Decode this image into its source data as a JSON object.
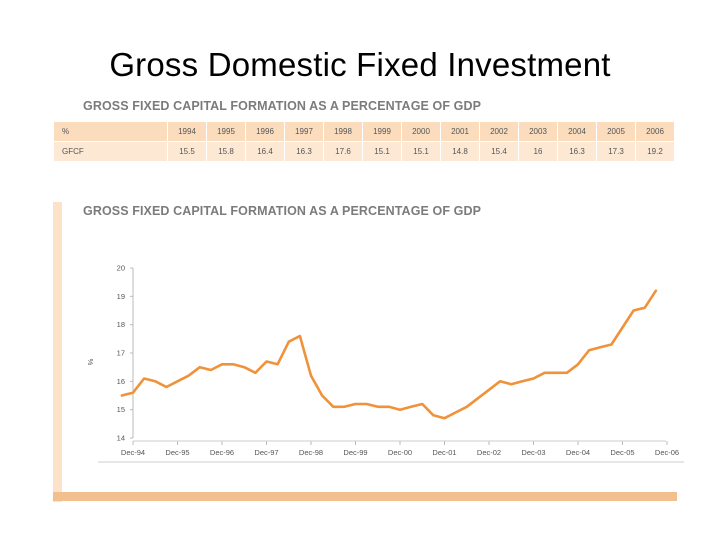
{
  "slide_title": "Gross Domestic Fixed Investment",
  "table": {
    "heading": "GROSS FIXED CAPITAL FORMATION AS A PERCENTAGE OF GDP",
    "header_label": "%",
    "years": [
      "1994",
      "1995",
      "1996",
      "1997",
      "1998",
      "1999",
      "2000",
      "2001",
      "2002",
      "2003",
      "2004",
      "2005",
      "2006"
    ],
    "row_label": "GFCF",
    "values": [
      "15.5",
      "15.8",
      "16.4",
      "16.3",
      "17.6",
      "15.1",
      "15.1",
      "14.8",
      "15.4",
      "16",
      "16.3",
      "17.3",
      "19.2"
    ]
  },
  "chart_data": {
    "type": "line",
    "title": "GROSS FIXED CAPITAL FORMATION AS A PERCENTAGE OF GDP",
    "xlabel": "",
    "ylabel": "%",
    "ylim": [
      14,
      20
    ],
    "y_ticks": [
      "20",
      "19",
      "18",
      "17",
      "16",
      "15",
      "14"
    ],
    "x_ticks": [
      "Dec-94",
      "Dec-95",
      "Dec-96",
      "Dec-97",
      "Dec-98",
      "Dec-99",
      "Dec-00",
      "Dec-01",
      "Dec-02",
      "Dec-03",
      "Dec-04",
      "Dec-05",
      "Dec-06"
    ],
    "grid": false,
    "line_color": "#f0923a",
    "series": [
      {
        "x": [
          "Sep-94",
          "Dec-94",
          "Mar-95",
          "Jun-95",
          "Sep-95",
          "Dec-95",
          "Mar-96",
          "Jun-96",
          "Sep-96",
          "Dec-96",
          "Mar-97",
          "Jun-97",
          "Sep-97",
          "Dec-97",
          "Mar-98",
          "Jun-98",
          "Sep-98",
          "Dec-98",
          "Mar-99",
          "Jun-99",
          "Sep-99",
          "Dec-99",
          "Mar-00",
          "Jun-00",
          "Sep-00",
          "Dec-00",
          "Mar-01",
          "Jun-01",
          "Sep-01",
          "Dec-01",
          "Mar-02",
          "Jun-02",
          "Sep-02",
          "Dec-02",
          "Mar-03",
          "Jun-03",
          "Sep-03",
          "Dec-03",
          "Mar-04",
          "Jun-04",
          "Sep-04",
          "Dec-04",
          "Mar-05",
          "Jun-05",
          "Sep-05",
          "Dec-05",
          "Mar-06",
          "Jun-06",
          "Sep-06"
        ],
        "values": [
          15.5,
          15.6,
          16.1,
          16.0,
          15.8,
          16.0,
          16.2,
          16.5,
          16.4,
          16.6,
          16.6,
          16.5,
          16.3,
          16.7,
          16.6,
          17.4,
          17.6,
          16.2,
          15.5,
          15.1,
          15.1,
          15.2,
          15.2,
          15.1,
          15.1,
          15.0,
          15.1,
          15.2,
          14.8,
          14.7,
          14.9,
          15.1,
          15.4,
          15.7,
          16.0,
          15.9,
          16.0,
          16.1,
          16.3,
          16.3,
          16.3,
          16.6,
          17.1,
          17.2,
          17.3,
          17.9,
          18.5,
          18.6,
          19.2
        ]
      }
    ]
  }
}
